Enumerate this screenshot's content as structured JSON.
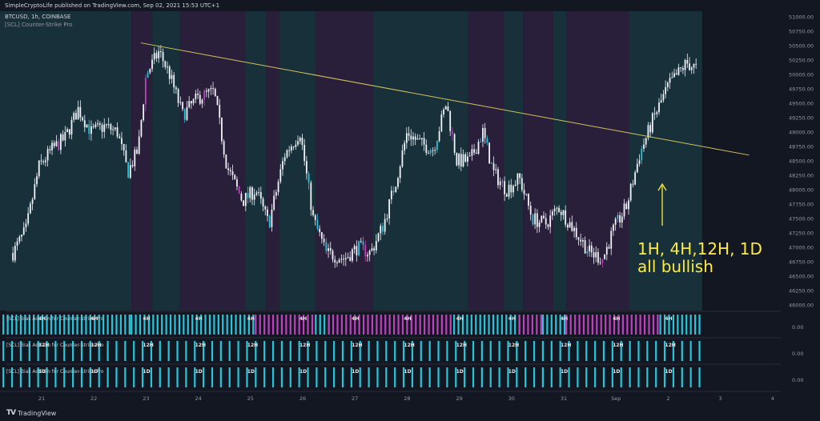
{
  "header": {
    "published": "SimpleCryptoLife published on TradingView.com, Sep 02, 2021 15:53 UTC+1",
    "symbol": "BTCUSD, 1h, COINBASE",
    "indicator": "[SCL] Counter-Strike Pro"
  },
  "footer": {
    "logo": "TV",
    "brand": "TradingView"
  },
  "annotation": {
    "line1": "1H, 4H,12H, 1D",
    "line2": "all bullish"
  },
  "colors": {
    "background": "#131722",
    "bull_zone": "#17303a",
    "bear_zone": "#2a1f3a",
    "candle": "#f0f3fa",
    "cyan": "#26c6da",
    "magenta": "#c040c0",
    "trendline": "#d4c25a",
    "annotation": "#ffeb3b"
  },
  "chart_data": {
    "type": "candlestick",
    "symbol": "BTCUSD",
    "timeframe": "1h",
    "ylim": [
      45900,
      51100
    ],
    "y_ticks": [
      "51000.00",
      "50750.00",
      "50500.00",
      "50250.00",
      "50000.00",
      "49750.00",
      "49500.00",
      "49250.00",
      "49000.00",
      "48750.00",
      "48500.00",
      "48250.00",
      "48000.00",
      "47750.00",
      "47500.00",
      "47250.00",
      "47000.00",
      "46750.00",
      "46500.00",
      "46250.00",
      "46000.00"
    ],
    "x_ticks": [
      "21",
      "22",
      "23",
      "24",
      "25",
      "26",
      "27",
      "28",
      "29",
      "30",
      "31",
      "Sep",
      "2",
      "3",
      "4"
    ],
    "price_path": [
      {
        "x": 20.45,
        "y": 46900
      },
      {
        "x": 20.7,
        "y": 47300
      },
      {
        "x": 20.95,
        "y": 48400
      },
      {
        "x": 21.2,
        "y": 48700
      },
      {
        "x": 21.45,
        "y": 48900
      },
      {
        "x": 21.7,
        "y": 49400
      },
      {
        "x": 21.95,
        "y": 49000
      },
      {
        "x": 22.2,
        "y": 49100
      },
      {
        "x": 22.45,
        "y": 49000
      },
      {
        "x": 22.65,
        "y": 48300
      },
      {
        "x": 22.85,
        "y": 48700
      },
      {
        "x": 23.0,
        "y": 50000
      },
      {
        "x": 23.25,
        "y": 50400
      },
      {
        "x": 23.45,
        "y": 50000
      },
      {
        "x": 23.7,
        "y": 49300
      },
      {
        "x": 24.0,
        "y": 49600
      },
      {
        "x": 24.3,
        "y": 49700
      },
      {
        "x": 24.55,
        "y": 48400
      },
      {
        "x": 24.85,
        "y": 47800
      },
      {
        "x": 25.1,
        "y": 48000
      },
      {
        "x": 25.35,
        "y": 47400
      },
      {
        "x": 25.65,
        "y": 48600
      },
      {
        "x": 25.95,
        "y": 49000
      },
      {
        "x": 26.2,
        "y": 47500
      },
      {
        "x": 26.45,
        "y": 46900
      },
      {
        "x": 26.8,
        "y": 46800
      },
      {
        "x": 27.05,
        "y": 47000
      },
      {
        "x": 27.3,
        "y": 46900
      },
      {
        "x": 27.55,
        "y": 47400
      },
      {
        "x": 27.8,
        "y": 48200
      },
      {
        "x": 28.0,
        "y": 49000
      },
      {
        "x": 28.25,
        "y": 48800
      },
      {
        "x": 28.5,
        "y": 48700
      },
      {
        "x": 28.75,
        "y": 49500
      },
      {
        "x": 28.95,
        "y": 48500
      },
      {
        "x": 29.2,
        "y": 48500
      },
      {
        "x": 29.45,
        "y": 49000
      },
      {
        "x": 29.65,
        "y": 48300
      },
      {
        "x": 29.9,
        "y": 48000
      },
      {
        "x": 30.15,
        "y": 48200
      },
      {
        "x": 30.4,
        "y": 47500
      },
      {
        "x": 30.65,
        "y": 47400
      },
      {
        "x": 30.9,
        "y": 47700
      },
      {
        "x": 31.2,
        "y": 47300
      },
      {
        "x": 31.5,
        "y": 46900
      },
      {
        "x": 31.75,
        "y": 46800
      },
      {
        "x": 31.95,
        "y": 47300
      },
      {
        "x": 32.2,
        "y": 47700
      },
      {
        "x": 32.45,
        "y": 48600
      },
      {
        "x": 32.7,
        "y": 49200
      },
      {
        "x": 33.0,
        "y": 49800
      },
      {
        "x": 33.35,
        "y": 50200
      },
      {
        "x": 33.55,
        "y": 50100
      }
    ],
    "trendline": [
      {
        "x": 22.9,
        "y": 50550
      },
      {
        "x": 34.55,
        "y": 48600
      }
    ],
    "zones": [
      {
        "bias": "bull",
        "from": 20.1,
        "to": 22.72
      },
      {
        "bias": "bear",
        "from": 22.72,
        "to": 23.12
      },
      {
        "bias": "bull",
        "from": 23.12,
        "to": 23.65
      },
      {
        "bias": "bear",
        "from": 23.65,
        "to": 24.9
      },
      {
        "bias": "bull",
        "from": 24.9,
        "to": 25.3
      },
      {
        "bias": "bear",
        "from": 25.3,
        "to": 25.55
      },
      {
        "bias": "bull",
        "from": 25.55,
        "to": 26.25
      },
      {
        "bias": "bear",
        "from": 26.25,
        "to": 27.35
      },
      {
        "bias": "bull",
        "from": 27.35,
        "to": 29.17
      },
      {
        "bias": "bear",
        "from": 29.17,
        "to": 29.85
      },
      {
        "bias": "bull",
        "from": 29.85,
        "to": 30.22
      },
      {
        "bias": "bear",
        "from": 30.22,
        "to": 30.8
      },
      {
        "bias": "bull",
        "from": 30.8,
        "to": 31.05
      },
      {
        "bias": "bear",
        "from": 31.05,
        "to": 32.25
      },
      {
        "bias": "bull",
        "from": 32.25,
        "to": 33.65
      }
    ],
    "indicator_panes": [
      {
        "label": "[SCL] Bias Add-On for Counter-Strike Pro",
        "tf": "4H",
        "value": "0.00",
        "bars": [
          {
            "bias": "bull",
            "from": 20.1,
            "to": 22.72
          },
          {
            "bias": "bull",
            "from": 22.72,
            "to": 25.1
          },
          {
            "bias": "bear",
            "from": 25.1,
            "to": 26.25
          },
          {
            "bias": "bull",
            "from": 26.25,
            "to": 26.5
          },
          {
            "bias": "bear",
            "from": 26.5,
            "to": 28.9
          },
          {
            "bias": "bull",
            "from": 28.9,
            "to": 30.15
          },
          {
            "bias": "bear",
            "from": 30.15,
            "to": 30.6
          },
          {
            "bias": "bull",
            "from": 30.6,
            "to": 31.05
          },
          {
            "bias": "bear",
            "from": 31.05,
            "to": 32.85
          },
          {
            "bias": "bull",
            "from": 32.85,
            "to": 33.65
          }
        ]
      },
      {
        "label": "[SCL] Bias Add-On for Counter-Strike Pro",
        "tf": "12H",
        "value": "0.00",
        "bars": [
          {
            "bias": "bull",
            "from": 20.1,
            "to": 33.65
          }
        ]
      },
      {
        "label": "[SCL] Bias Add-On for Counter-Strike Pro",
        "tf": "1D",
        "value": "0.00",
        "bars": [
          {
            "bias": "bull",
            "from": 20.1,
            "to": 33.65
          }
        ]
      }
    ],
    "legend": "top-left",
    "grid": false
  }
}
